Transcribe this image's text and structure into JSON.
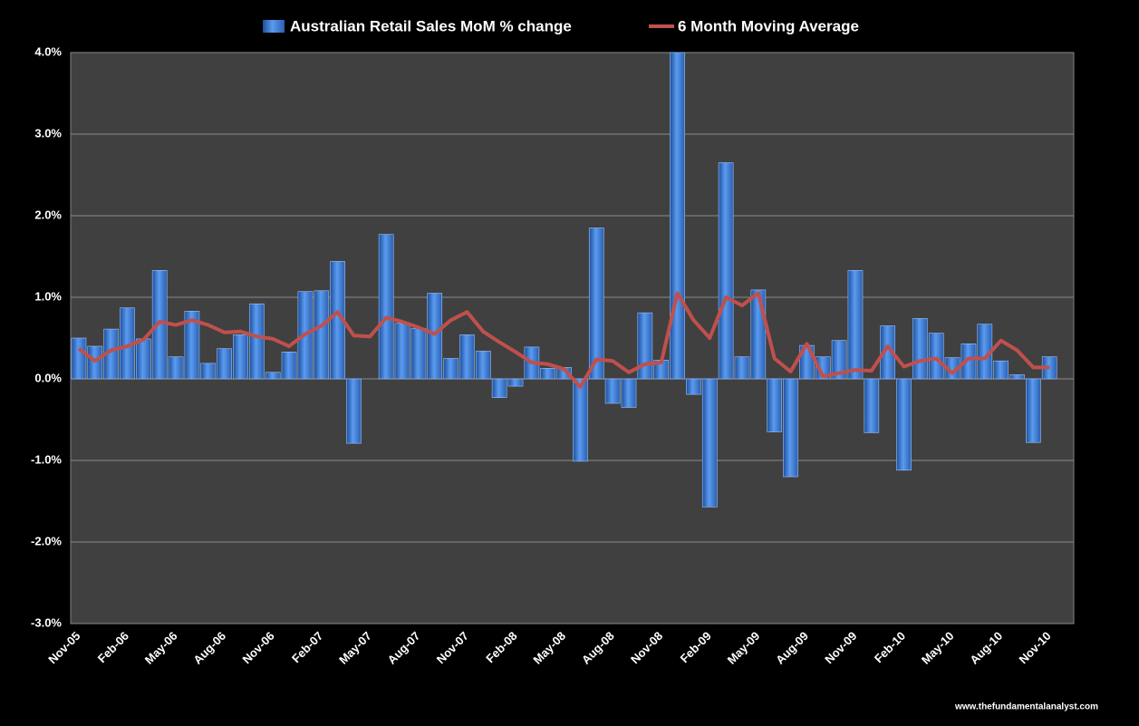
{
  "chart_data": {
    "type": "bar-line",
    "categories": [
      "Nov-05",
      null,
      null,
      "Feb-06",
      null,
      null,
      "May-06",
      null,
      null,
      "Aug-06",
      null,
      null,
      "Nov-06",
      null,
      null,
      "Feb-07",
      null,
      null,
      "May-07",
      null,
      null,
      "Aug-07",
      null,
      null,
      "Nov-07",
      null,
      null,
      "Feb-08",
      null,
      null,
      "May-08",
      null,
      null,
      "Aug-08",
      null,
      null,
      "Nov-08",
      null,
      null,
      "Feb-09",
      null,
      null,
      "May-09",
      null,
      null,
      "Aug-09",
      null,
      null,
      "Nov-09",
      null,
      null,
      "Feb-10",
      null,
      null,
      "May-10",
      null,
      null,
      "Aug-10",
      null,
      null,
      "Nov-10"
    ],
    "series": [
      {
        "name": "Australian Retail Sales MoM % change",
        "type": "bar",
        "color": "#3f7fd8",
        "values": [
          0.5,
          0.4,
          0.61,
          0.87,
          0.49,
          1.33,
          0.27,
          0.83,
          0.19,
          0.37,
          0.54,
          0.92,
          0.08,
          0.33,
          1.07,
          1.08,
          1.44,
          -0.79,
          0.0,
          1.77,
          0.68,
          0.62,
          1.05,
          0.25,
          0.54,
          0.34,
          -0.23,
          -0.09,
          0.39,
          0.13,
          0.14,
          -1.01,
          1.85,
          -0.3,
          -0.35,
          0.81,
          0.23,
          4.0,
          -0.19,
          -1.57,
          2.65,
          0.27,
          1.09,
          -0.65,
          -1.2,
          0.41,
          0.27,
          0.47,
          1.33,
          -0.66,
          0.65,
          -1.12,
          0.74,
          0.56,
          0.26,
          0.43,
          0.67,
          0.22,
          0.05,
          -0.78,
          0.27
        ]
      },
      {
        "name": "6 Month Moving Average",
        "type": "line",
        "color": "#c0504d",
        "values": [
          0.37,
          0.22,
          0.35,
          0.4,
          0.48,
          0.7,
          0.66,
          0.72,
          0.66,
          0.57,
          0.58,
          0.52,
          0.49,
          0.4,
          0.55,
          0.65,
          0.82,
          0.53,
          0.52,
          0.75,
          0.7,
          0.63,
          0.55,
          0.72,
          0.82,
          0.58,
          0.45,
          0.33,
          0.2,
          0.18,
          0.12,
          -0.1,
          0.24,
          0.22,
          0.08,
          0.18,
          0.2,
          1.05,
          0.72,
          0.5,
          1.0,
          0.9,
          1.05,
          0.25,
          0.09,
          0.43,
          0.03,
          0.07,
          0.11,
          0.1,
          0.4,
          0.15,
          0.22,
          0.25,
          0.07,
          0.25,
          0.25,
          0.47,
          0.35,
          0.14,
          0.14
        ]
      }
    ],
    "ylim": [
      -3,
      4
    ],
    "yticks": [
      {
        "value": -3,
        "label": "-3.0%"
      },
      {
        "value": -2,
        "label": "-2.0%"
      },
      {
        "value": -1,
        "label": "-1.0%"
      },
      {
        "value": 0,
        "label": "0.0%"
      },
      {
        "value": 1,
        "label": "1.0%"
      },
      {
        "value": 2,
        "label": "2.0%"
      },
      {
        "value": 3,
        "label": "3.0%"
      },
      {
        "value": 4,
        "label": "4.0%"
      }
    ],
    "grid": true,
    "legend": "top",
    "source": "www.thefundamentalanalyst.com"
  }
}
